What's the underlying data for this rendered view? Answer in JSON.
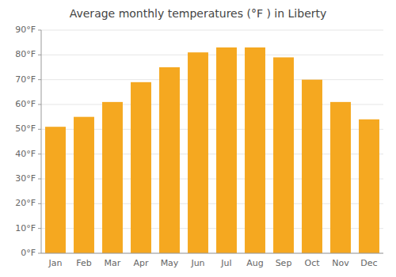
{
  "chart_data": {
    "type": "bar",
    "title": "Average monthly temperatures (°F ) in Liberty",
    "categories": [
      "Jan",
      "Feb",
      "Mar",
      "Apr",
      "May",
      "Jun",
      "Jul",
      "Aug",
      "Sep",
      "Oct",
      "Nov",
      "Dec"
    ],
    "values": [
      51,
      55,
      61,
      69,
      75,
      81,
      83,
      83,
      79,
      70,
      61,
      54
    ],
    "color": "#F5A820",
    "ylim": [
      0,
      90
    ],
    "yticks": [
      {
        "value": 0,
        "label": "0°F"
      },
      {
        "value": 10,
        "label": "10°F"
      },
      {
        "value": 20,
        "label": "20°F"
      },
      {
        "value": 30,
        "label": "30°F"
      },
      {
        "value": 40,
        "label": "40°F"
      },
      {
        "value": 50,
        "label": "50°F"
      },
      {
        "value": 60,
        "label": "60°F"
      },
      {
        "value": 70,
        "label": "70°F"
      },
      {
        "value": 80,
        "label": "80°F"
      },
      {
        "value": 90,
        "label": "90°F"
      }
    ],
    "grid": true
  }
}
